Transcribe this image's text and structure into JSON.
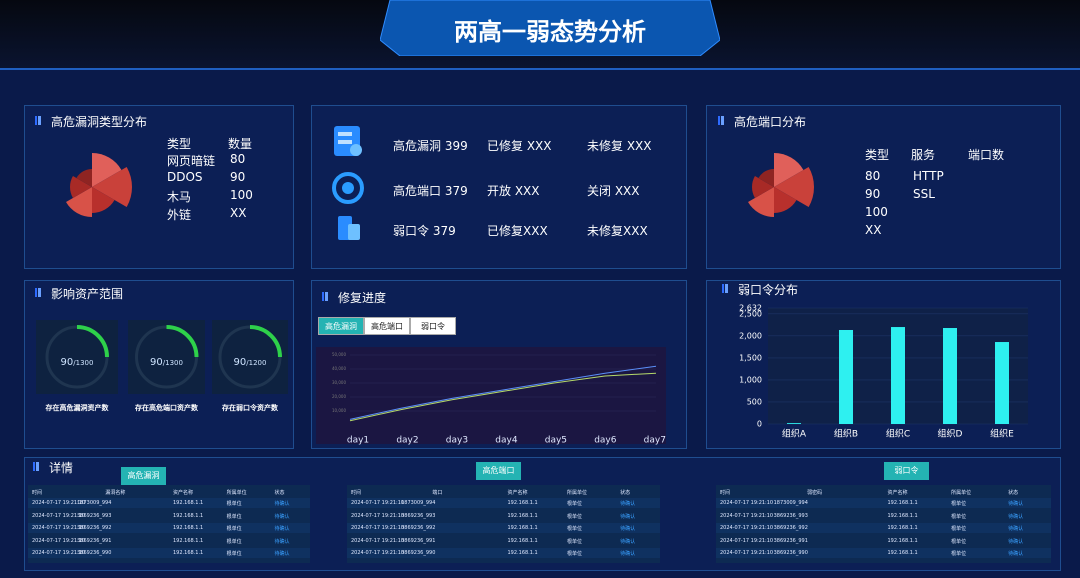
{
  "header": {
    "title": "两高一弱态势分析"
  },
  "vuln_types": {
    "title": "高危漏洞类型分布",
    "headers": [
      "类型",
      "数量"
    ],
    "rows": [
      [
        "网页暗链",
        "80"
      ],
      [
        "DDOS",
        "90"
      ],
      [
        "木马",
        "100"
      ],
      [
        "外链",
        "XX"
      ]
    ]
  },
  "summary": {
    "rows": [
      [
        "高危漏洞 399",
        "已修复 XXX",
        "未修复 XXX"
      ],
      [
        "高危端口 379",
        "开放 XXX",
        "关闭 XXX"
      ],
      [
        "弱口令 379",
        "已修复XXX",
        "未修复XXX"
      ]
    ]
  },
  "ports": {
    "title": "高危端口分布",
    "headers": [
      "类型",
      "服务",
      "端口数"
    ],
    "rows": [
      [
        "80",
        "HTTP"
      ],
      [
        "90",
        "SSL"
      ],
      [
        "100"
      ],
      [
        "XX"
      ]
    ]
  },
  "assets": {
    "title": "影响资产范围",
    "gauges": [
      {
        "value": "90",
        "total": "/1300",
        "label": "存在高危漏洞资产数"
      },
      {
        "value": "90",
        "total": "/1300",
        "label": "存在高危端口资产数"
      },
      {
        "value": "90",
        "total": "/1200",
        "label": "存在弱口令资产数"
      }
    ]
  },
  "progress": {
    "title": "修复进度",
    "tabs": [
      "高危漏洞",
      "高危端口",
      "弱口令"
    ],
    "chart": {
      "type": "line",
      "categories": [
        "day1",
        "day2",
        "day3",
        "day4",
        "day5",
        "day6",
        "day7"
      ],
      "series": [
        {
          "color": "#5b8ff9",
          "values": [
            4000,
            12000,
            19000,
            25000,
            31000,
            37000,
            42000
          ]
        },
        {
          "color": "#b5d96a",
          "values": [
            3000,
            11000,
            18000,
            24000,
            30000,
            35000,
            37000
          ]
        }
      ],
      "ylim": [
        0,
        50000
      ],
      "yticks": [
        {
          "value": 10000,
          "label": "10,000"
        },
        {
          "value": 20000,
          "label": "20,000"
        },
        {
          "value": 30000,
          "label": "30,000"
        },
        {
          "value": 40000,
          "label": "40,000"
        },
        {
          "value": 50000,
          "label": "50,000"
        }
      ]
    }
  },
  "weak": {
    "title": "弱口令分布",
    "chart": {
      "type": "bar",
      "categories": [
        "组织A",
        "组织B",
        "组织C",
        "组织D",
        "组织E"
      ],
      "values": [
        20,
        2133,
        2200,
        2178,
        1860
      ],
      "color": "#2ef0f0",
      "ylim": [
        0,
        2632
      ],
      "yticks": [
        0,
        500,
        {
          "value": 1000,
          "label": "1,000"
        },
        {
          "value": 1500,
          "label": "1,500"
        },
        {
          "value": 2000,
          "label": "2,000"
        },
        {
          "value": 2500,
          "label": "2,500"
        },
        {
          "value": 2632,
          "label": "2,632"
        }
      ]
    }
  },
  "details": {
    "title": "详情",
    "tables": [
      {
        "tab": "高危漏洞",
        "headers": [
          "时间",
          "漏洞名称",
          "资产名称",
          "所属单位",
          "状态"
        ],
        "rows": [
          [
            "2024-07-17 19:21:10",
            "1873009_994",
            "192.168.1.1",
            "根单位",
            "待确认"
          ],
          [
            "2024-07-17 19:21:10",
            "3869236_993",
            "192.168.1.1",
            "根单位",
            "待确认"
          ],
          [
            "2024-07-17 19:21:10",
            "3869236_992",
            "192.168.1.1",
            "根单位",
            "待确认"
          ],
          [
            "2024-07-17 19:21:10",
            "3869236_991",
            "192.168.1.1",
            "根单位",
            "待确认"
          ],
          [
            "2024-07-17 19:21:10",
            "3869236_990",
            "192.168.1.1",
            "根单位",
            "待确认"
          ]
        ]
      },
      {
        "tab": "高危端口",
        "headers": [
          "时间",
          "端口",
          "资产名称",
          "所属单位",
          "状态"
        ],
        "rows": [
          [
            "2024-07-17 19:21:10",
            "1873009_994",
            "192.168.1.1",
            "根单位",
            "待确认"
          ],
          [
            "2024-07-17 19:21:10",
            "3869236_993",
            "192.168.1.1",
            "根单位",
            "待确认"
          ],
          [
            "2024-07-17 19:21:10",
            "3869236_992",
            "192.168.1.1",
            "根单位",
            "待确认"
          ],
          [
            "2024-07-17 19:21:10",
            "3869236_991",
            "192.168.1.1",
            "根单位",
            "待确认"
          ],
          [
            "2024-07-17 19:21:10",
            "3869236_990",
            "192.168.1.1",
            "根单位",
            "待确认"
          ]
        ]
      },
      {
        "tab": "弱口令",
        "headers": [
          "时间",
          "弱密码",
          "资产名称",
          "所属单位",
          "状态"
        ],
        "rows": [
          [
            "2024-07-17 19:21:10",
            "1873009_994",
            "192.168.1.1",
            "根单位",
            "待确认"
          ],
          [
            "2024-07-17 19:21:10",
            "3869236_993",
            "192.168.1.1",
            "根单位",
            "待确认"
          ],
          [
            "2024-07-17 19:21:10",
            "3869236_992",
            "192.168.1.1",
            "根单位",
            "待确认"
          ],
          [
            "2024-07-17 19:21:10",
            "3869236_991",
            "192.168.1.1",
            "根单位",
            "待确认"
          ],
          [
            "2024-07-17 19:21:10",
            "3869236_990",
            "192.168.1.1",
            "根单位",
            "待确认"
          ]
        ]
      }
    ]
  }
}
